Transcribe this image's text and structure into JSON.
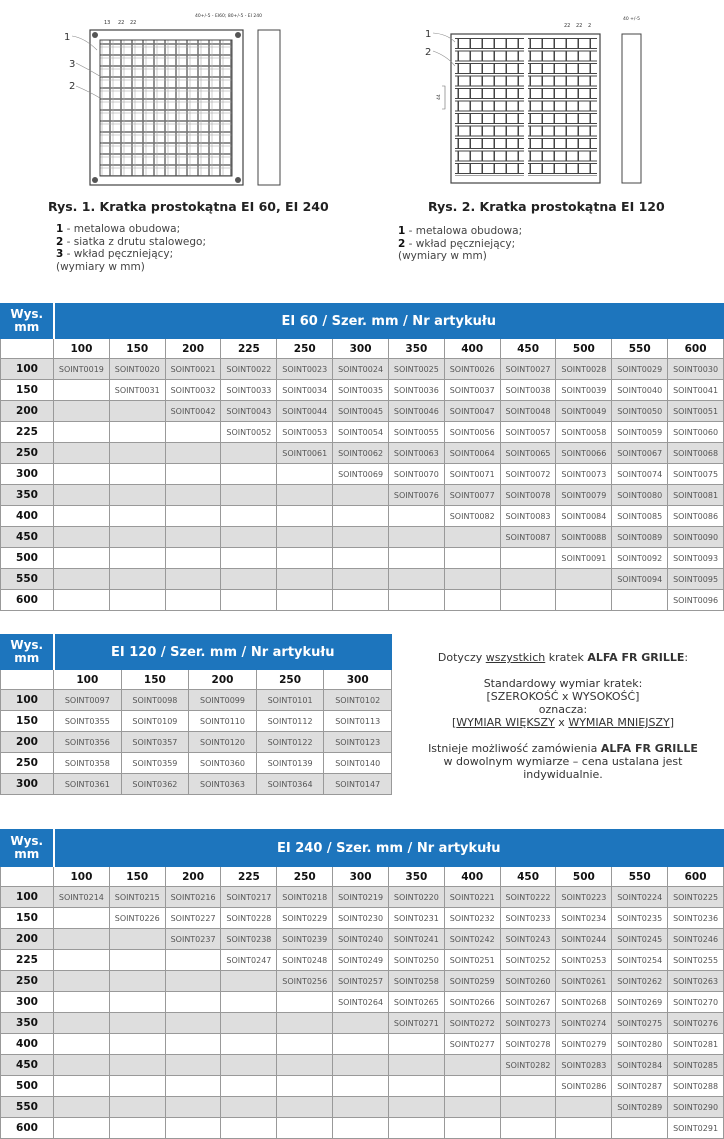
{
  "figure1": {
    "caption": "Rys. 1. Kratka prostokątna EI 60, EI 240",
    "callouts": [
      "1",
      "3",
      "2"
    ],
    "dims": {
      "a": "13",
      "b": "22",
      "c": "22",
      "depth": "40+/-5 - EI60; 80+/-5 - EI 240"
    },
    "legend": [
      {
        "num": "1",
        "text": " - metalowa obudowa;"
      },
      {
        "num": "2",
        "text": " - siatka z drutu stalowego;"
      },
      {
        "num": "3",
        "text": " - wkład pęczniejący;"
      }
    ],
    "units": "(wymiary w mm)"
  },
  "figure2": {
    "caption": "Rys. 2. Kratka prostokątna EI 120",
    "callouts": [
      "1",
      "2"
    ],
    "dims": {
      "a": "22",
      "b": "22",
      "c": "2",
      "depth": "40 +/-5",
      "pitch": "44"
    },
    "legend": [
      {
        "num": "1",
        "text": " - metalowa obudowa;"
      },
      {
        "num": "2",
        "text": " - wkład pęczniejący;"
      }
    ],
    "units": "(wymiary w mm)"
  },
  "note": {
    "l1_pre": "Dotyczy ",
    "l1_u": "wszystkich",
    "l1_mid": " kratek ",
    "l1_b": "ALFA FR GRILLE",
    "l1_end": ":",
    "l2": "Standardowy wymiar kratek:",
    "l3": "[SZEROKOŚĆ x WYSOKOŚĆ]",
    "l4": "oznacza:",
    "l5_a": "WYMIAR WIĘKSZY",
    "l5_x": " x ",
    "l5_b": "WYMIAR MNIEJSZY",
    "l6_pre": "Istnieje możliwość zamówienia ",
    "l6_b": "ALFA FR GRILLE",
    "l7": "w dowolnym wymiarze – cena ustalana jest",
    "l8": "indywidualnie."
  },
  "tables": [
    {
      "id": "ei60",
      "corner": "Wys.\nmm",
      "title": "EI 60  / Szer. mm / Nr artykułu",
      "columns": [
        "100",
        "150",
        "200",
        "225",
        "250",
        "300",
        "350",
        "400",
        "450",
        "500",
        "550",
        "600"
      ],
      "rows": [
        {
          "h": "100",
          "cells": [
            "SOINT0019",
            "SOINT0020",
            "SOINT0021",
            "SOINT0022",
            "SOINT0023",
            "SOINT0024",
            "SOINT0025",
            "SOINT0026",
            "SOINT0027",
            "SOINT0028",
            "SOINT0029",
            "SOINT0030"
          ]
        },
        {
          "h": "150",
          "cells": [
            "",
            "SOINT0031",
            "SOINT0032",
            "SOINT0033",
            "SOINT0034",
            "SOINT0035",
            "SOINT0036",
            "SOINT0037",
            "SOINT0038",
            "SOINT0039",
            "SOINT0040",
            "SOINT0041"
          ]
        },
        {
          "h": "200",
          "cells": [
            "",
            "",
            "SOINT0042",
            "SOINT0043",
            "SOINT0044",
            "SOINT0045",
            "SOINT0046",
            "SOINT0047",
            "SOINT0048",
            "SOINT0049",
            "SOINT0050",
            "SOINT0051"
          ]
        },
        {
          "h": "225",
          "cells": [
            "",
            "",
            "",
            "SOINT0052",
            "SOINT0053",
            "SOINT0054",
            "SOINT0055",
            "SOINT0056",
            "SOINT0057",
            "SOINT0058",
            "SOINT0059",
            "SOINT0060"
          ]
        },
        {
          "h": "250",
          "cells": [
            "",
            "",
            "",
            "",
            "SOINT0061",
            "SOINT0062",
            "SOINT0063",
            "SOINT0064",
            "SOINT0065",
            "SOINT0066",
            "SOINT0067",
            "SOINT0068"
          ]
        },
        {
          "h": "300",
          "cells": [
            "",
            "",
            "",
            "",
            "",
            "SOINT0069",
            "SOINT0070",
            "SOINT0071",
            "SOINT0072",
            "SOINT0073",
            "SOINT0074",
            "SOINT0075"
          ]
        },
        {
          "h": "350",
          "cells": [
            "",
            "",
            "",
            "",
            "",
            "",
            "SOINT0076",
            "SOINT0077",
            "SOINT0078",
            "SOINT0079",
            "SOINT0080",
            "SOINT0081"
          ]
        },
        {
          "h": "400",
          "cells": [
            "",
            "",
            "",
            "",
            "",
            "",
            "",
            "SOINT0082",
            "SOINT0083",
            "SOINT0084",
            "SOINT0085",
            "SOINT0086"
          ]
        },
        {
          "h": "450",
          "cells": [
            "",
            "",
            "",
            "",
            "",
            "",
            "",
            "",
            "SOINT0087",
            "SOINT0088",
            "SOINT0089",
            "SOINT0090"
          ]
        },
        {
          "h": "500",
          "cells": [
            "",
            "",
            "",
            "",
            "",
            "",
            "",
            "",
            "",
            "SOINT0091",
            "SOINT0092",
            "SOINT0093"
          ]
        },
        {
          "h": "550",
          "cells": [
            "",
            "",
            "",
            "",
            "",
            "",
            "",
            "",
            "",
            "",
            "SOINT0094",
            "SOINT0095"
          ]
        },
        {
          "h": "600",
          "cells": [
            "",
            "",
            "",
            "",
            "",
            "",
            "",
            "",
            "",
            "",
            "",
            "SOINT0096"
          ]
        }
      ]
    },
    {
      "id": "ei120",
      "corner": "Wys.\nmm",
      "title": "EI 120  / Szer. mm / Nr artykułu",
      "columns": [
        "100",
        "150",
        "200",
        "250",
        "300"
      ],
      "rows": [
        {
          "h": "100",
          "cells": [
            "SOINT0097",
            "SOINT0098",
            "SOINT0099",
            "SOINT0101",
            "SOINT0102"
          ]
        },
        {
          "h": "150",
          "cells": [
            "SOINT0355",
            "SOINT0109",
            "SOINT0110",
            "SOINT0112",
            "SOINT0113"
          ]
        },
        {
          "h": "200",
          "cells": [
            "SOINT0356",
            "SOINT0357",
            "SOINT0120",
            "SOINT0122",
            "SOINT0123"
          ]
        },
        {
          "h": "250",
          "cells": [
            "SOINT0358",
            "SOINT0359",
            "SOINT0360",
            "SOINT0139",
            "SOINT0140"
          ]
        },
        {
          "h": "300",
          "cells": [
            "SOINT0361",
            "SOINT0362",
            "SOINT0363",
            "SOINT0364",
            "SOINT0147"
          ]
        }
      ]
    },
    {
      "id": "ei240",
      "corner": "Wys.\nmm",
      "title": "EI 240  / Szer. mm / Nr artykułu",
      "columns": [
        "100",
        "150",
        "200",
        "225",
        "250",
        "300",
        "350",
        "400",
        "450",
        "500",
        "550",
        "600"
      ],
      "rows": [
        {
          "h": "100",
          "cells": [
            "SOINT0214",
            "SOINT0215",
            "SOINT0216",
            "SOINT0217",
            "SOINT0218",
            "SOINT0219",
            "SOINT0220",
            "SOINT0221",
            "SOINT0222",
            "SOINT0223",
            "SOINT0224",
            "SOINT0225"
          ]
        },
        {
          "h": "150",
          "cells": [
            "",
            "SOINT0226",
            "SOINT0227",
            "SOINT0228",
            "SOINT0229",
            "SOINT0230",
            "SOINT0231",
            "SOINT0232",
            "SOINT0233",
            "SOINT0234",
            "SOINT0235",
            "SOINT0236"
          ]
        },
        {
          "h": "200",
          "cells": [
            "",
            "",
            "SOINT0237",
            "SOINT0238",
            "SOINT0239",
            "SOINT0240",
            "SOINT0241",
            "SOINT0242",
            "SOINT0243",
            "SOINT0244",
            "SOINT0245",
            "SOINT0246"
          ]
        },
        {
          "h": "225",
          "cells": [
            "",
            "",
            "",
            "SOINT0247",
            "SOINT0248",
            "SOINT0249",
            "SOINT0250",
            "SOINT0251",
            "SOINT0252",
            "SOINT0253",
            "SOINT0254",
            "SOINT0255"
          ]
        },
        {
          "h": "250",
          "cells": [
            "",
            "",
            "",
            "",
            "SOINT0256",
            "SOINT0257",
            "SOINT0258",
            "SOINT0259",
            "SOINT0260",
            "SOINT0261",
            "SOINT0262",
            "SOINT0263"
          ]
        },
        {
          "h": "300",
          "cells": [
            "",
            "",
            "",
            "",
            "",
            "SOINT0264",
            "SOINT0265",
            "SOINT0266",
            "SOINT0267",
            "SOINT0268",
            "SOINT0269",
            "SOINT0270"
          ]
        },
        {
          "h": "350",
          "cells": [
            "",
            "",
            "",
            "",
            "",
            "",
            "SOINT0271",
            "SOINT0272",
            "SOINT0273",
            "SOINT0274",
            "SOINT0275",
            "SOINT0276"
          ]
        },
        {
          "h": "400",
          "cells": [
            "",
            "",
            "",
            "",
            "",
            "",
            "",
            "SOINT0277",
            "SOINT0278",
            "SOINT0279",
            "SOINT0280",
            "SOINT0281"
          ]
        },
        {
          "h": "450",
          "cells": [
            "",
            "",
            "",
            "",
            "",
            "",
            "",
            "",
            "SOINT0282",
            "SOINT0283",
            "SOINT0284",
            "SOINT0285"
          ]
        },
        {
          "h": "500",
          "cells": [
            "",
            "",
            "",
            "",
            "",
            "",
            "",
            "",
            "",
            "SOINT0286",
            "SOINT0287",
            "SOINT0288"
          ]
        },
        {
          "h": "550",
          "cells": [
            "",
            "",
            "",
            "",
            "",
            "",
            "",
            "",
            "",
            "",
            "SOINT0289",
            "SOINT0290"
          ]
        },
        {
          "h": "600",
          "cells": [
            "",
            "",
            "",
            "",
            "",
            "",
            "",
            "",
            "",
            "",
            "",
            "SOINT0291"
          ]
        }
      ]
    }
  ],
  "colors": {
    "header_blue": "#1d75bd",
    "row_gray": "#dedede"
  }
}
